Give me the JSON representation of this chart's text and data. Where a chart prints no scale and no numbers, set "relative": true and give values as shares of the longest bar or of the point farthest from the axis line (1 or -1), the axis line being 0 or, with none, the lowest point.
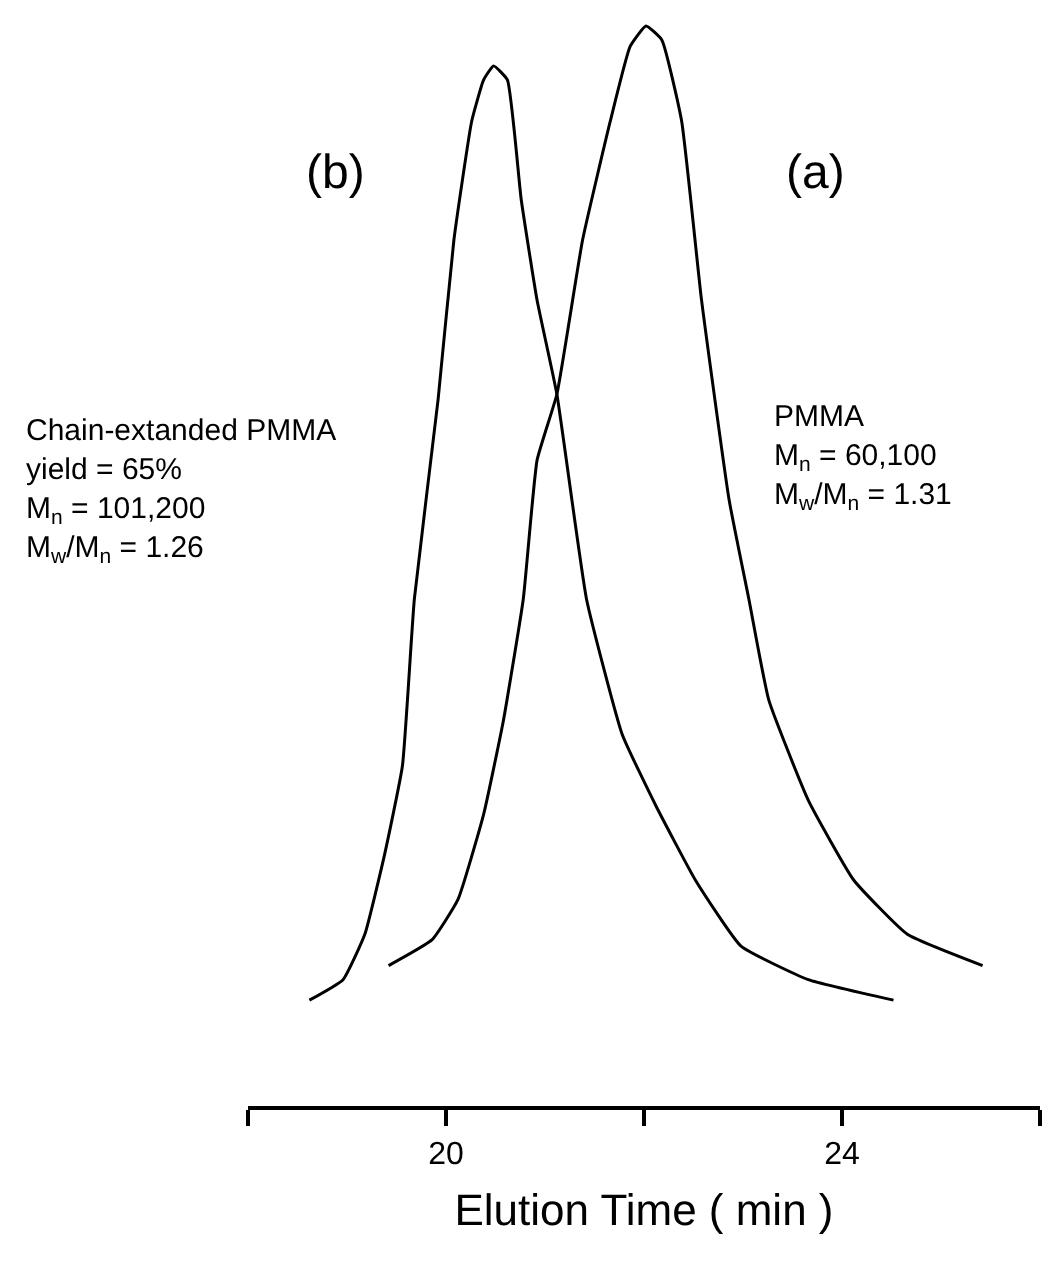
{
  "chart_data": {
    "type": "line",
    "relative": true,
    "xlabel": "Elution Time ( min )",
    "xlim": [
      18,
      26
    ],
    "xticks": [
      {
        "value": 18,
        "label": null
      },
      20,
      {
        "value": 22,
        "label": null
      },
      24,
      {
        "value": 26,
        "label": null
      }
    ],
    "marker": "none",
    "line_style": "solid",
    "series": [
      {
        "color": "#000000",
        "x": [
          18.62,
          18.96,
          19.18,
          19.38,
          19.56,
          19.68,
          19.92,
          20.08,
          20.26,
          20.38,
          20.48,
          20.62,
          20.76,
          20.92,
          21.12,
          21.42,
          21.78,
          22.12,
          22.52,
          22.98,
          23.66,
          24.52
        ],
        "values": [
          0.098,
          0.117,
          0.159,
          0.233,
          0.315,
          0.469,
          0.654,
          0.802,
          0.912,
          0.95,
          0.963,
          0.95,
          0.839,
          0.746,
          0.659,
          0.469,
          0.344,
          0.278,
          0.209,
          0.148,
          0.117,
          0.098
        ]
      },
      {
        "color": "#000000",
        "x": [
          19.42,
          19.86,
          20.12,
          20.38,
          20.58,
          20.78,
          20.92,
          21.12,
          21.38,
          21.66,
          21.86,
          22.02,
          22.18,
          22.38,
          22.58,
          22.86,
          23.06,
          23.26,
          23.66,
          24.12,
          24.66,
          25.42
        ],
        "values": [
          0.13,
          0.154,
          0.191,
          0.27,
          0.357,
          0.469,
          0.598,
          0.659,
          0.802,
          0.912,
          0.981,
          1,
          0.987,
          0.912,
          0.747,
          0.561,
          0.469,
          0.376,
          0.283,
          0.209,
          0.159,
          0.13
        ]
      }
    ],
    "annotations": [
      "(b)",
      "(a)",
      "Chain-extanded PMMA\nyield = 65%\nM$_{n}$ = 101,200\nM$_{w}$/M$_{n}$ = 1.26",
      "PMMA\nM$_{n}$ = 60,100\nM$_{w}$/M$_{n}$ = 1.31"
    ]
  }
}
